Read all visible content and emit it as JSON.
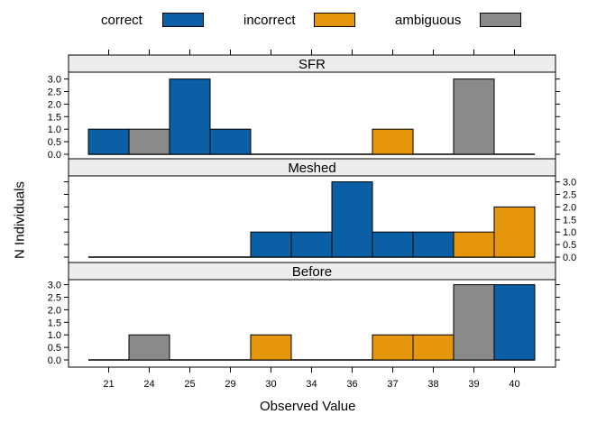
{
  "chart_data": {
    "type": "bar",
    "xlabel": "Observed Value",
    "ylabel": "N Individuals",
    "categories": [
      "21",
      "24",
      "25",
      "29",
      "30",
      "34",
      "36",
      "37",
      "38",
      "39",
      "40"
    ],
    "ylim": [
      0,
      3.2
    ],
    "yticks": [
      "0.0",
      "0.5",
      "1.0",
      "1.5",
      "2.0",
      "2.5",
      "3.0"
    ],
    "legend": {
      "placement": "top",
      "items": [
        {
          "label": "correct",
          "color": "#0a5fa5"
        },
        {
          "label": "incorrect",
          "color": "#e5960c"
        },
        {
          "label": "ambiguous",
          "color": "#8a8a8a"
        }
      ]
    },
    "panels": [
      {
        "title": "SFR",
        "values": [
          1,
          1,
          3,
          1,
          0,
          0,
          0,
          1,
          0,
          3,
          0
        ],
        "status": [
          "correct",
          "ambiguous",
          "correct",
          "correct",
          null,
          null,
          null,
          "incorrect",
          null,
          "ambiguous",
          null
        ]
      },
      {
        "title": "Meshed",
        "values": [
          0,
          0,
          0,
          0,
          1,
          1,
          3,
          1,
          1,
          1,
          2
        ],
        "status": [
          null,
          null,
          null,
          null,
          "correct",
          "correct",
          "correct",
          "correct",
          "correct",
          "incorrect",
          "incorrect"
        ]
      },
      {
        "title": "Before",
        "values": [
          0,
          1,
          0,
          0,
          1,
          0,
          0,
          1,
          1,
          3,
          3
        ],
        "status": [
          null,
          "ambiguous",
          null,
          null,
          "incorrect",
          null,
          null,
          "incorrect",
          "incorrect",
          "ambiguous",
          "correct"
        ]
      }
    ]
  }
}
